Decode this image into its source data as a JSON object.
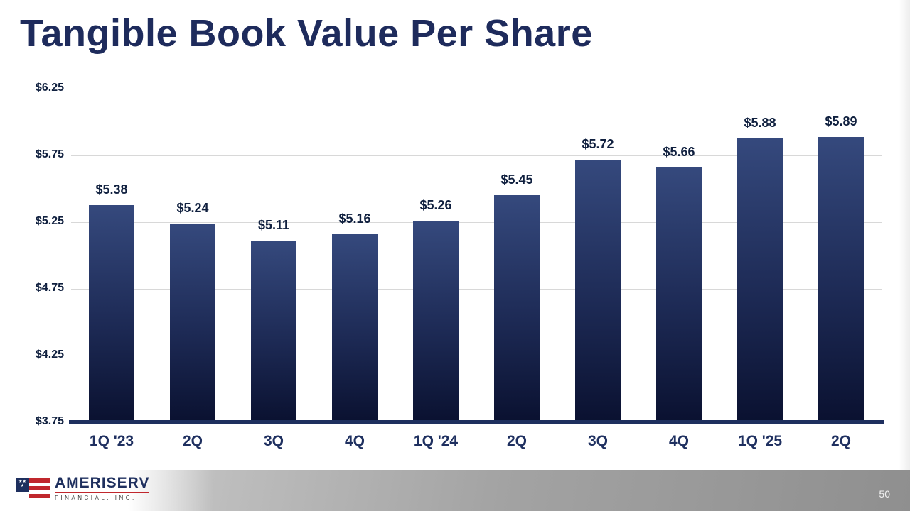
{
  "slide": {
    "title": "Tangible Book Value Per Share"
  },
  "chart_data": {
    "type": "bar",
    "title": "Tangible Book Value Per Share",
    "categories": [
      "1Q '23",
      "2Q",
      "3Q",
      "4Q",
      "1Q '24",
      "2Q",
      "3Q",
      "4Q",
      "1Q '25",
      "2Q"
    ],
    "values": [
      5.38,
      5.24,
      5.11,
      5.16,
      5.26,
      5.45,
      5.72,
      5.66,
      5.88,
      5.89
    ],
    "data_labels": [
      "$5.38",
      "$5.24",
      "$5.11",
      "$5.16",
      "$5.26",
      "$5.45",
      "$5.72",
      "$5.66",
      "$5.88",
      "$5.89"
    ],
    "ylim": [
      3.75,
      6.25
    ],
    "ytick_step": 0.5,
    "ytick_labels": [
      "$3.75",
      "$4.25",
      "$4.75",
      "$5.25",
      "$5.75",
      "$6.25"
    ],
    "grid": true,
    "legend": "none",
    "bar_color_top": "#35497d",
    "bar_color_bottom": "#0a1130",
    "axis_color": "#1e2f5e"
  },
  "footer": {
    "company_name": "AMERISERV",
    "company_subtitle": "FINANCIAL, INC.",
    "page_number": "50"
  }
}
